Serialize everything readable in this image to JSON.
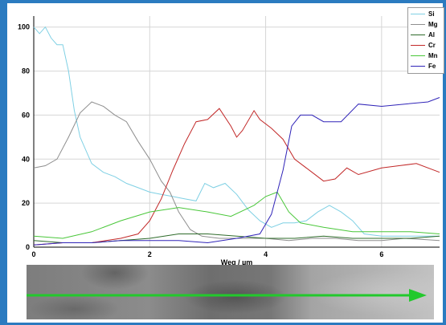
{
  "chart_data": {
    "type": "line",
    "title": "",
    "xlabel": "Weg / µm",
    "ylabel": "",
    "xlim": [
      0,
      7
    ],
    "ylim": [
      0,
      105
    ],
    "xticks": [
      0,
      2,
      4,
      6
    ],
    "yticks": [
      0,
      20,
      40,
      60,
      80,
      100
    ],
    "grid": true,
    "legend_position": "top-right",
    "series": [
      {
        "name": "Si",
        "color": "#7fd0e4",
        "x": [
          0,
          0.1,
          0.2,
          0.3,
          0.4,
          0.5,
          0.6,
          0.7,
          0.8,
          1.0,
          1.2,
          1.4,
          1.6,
          1.8,
          2.0,
          2.2,
          2.4,
          2.6,
          2.8,
          2.95,
          3.1,
          3.3,
          3.5,
          3.7,
          3.9,
          4.1,
          4.3,
          4.5,
          4.7,
          4.9,
          5.1,
          5.3,
          5.5,
          5.7,
          6.0,
          6.3,
          6.6,
          7.0
        ],
        "y": [
          100,
          97,
          100,
          95,
          92,
          92,
          80,
          62,
          50,
          38,
          34,
          32,
          29,
          27,
          25,
          24,
          23,
          22,
          21,
          29,
          27,
          29,
          24,
          17,
          12,
          9,
          11,
          11,
          12,
          16,
          19,
          16,
          12,
          6,
          5,
          5,
          5,
          5
        ]
      },
      {
        "name": "Mg",
        "color": "#8e8e8e",
        "x": [
          0,
          0.2,
          0.4,
          0.6,
          0.8,
          1.0,
          1.2,
          1.4,
          1.6,
          1.8,
          2.0,
          2.2,
          2.35,
          2.5,
          2.7,
          2.9,
          3.2,
          3.6,
          4.0,
          4.4,
          4.8,
          5.2,
          5.6,
          6.0,
          6.4,
          7.0
        ],
        "y": [
          36,
          37,
          40,
          50,
          61,
          66,
          64,
          60,
          57,
          48,
          40,
          30,
          25,
          16,
          8,
          5,
          4,
          4,
          4,
          3,
          4,
          4,
          3,
          3,
          4,
          3
        ]
      },
      {
        "name": "Al",
        "color": "#2e6b2a",
        "x": [
          0,
          0.5,
          1.0,
          1.5,
          2.0,
          2.5,
          3.0,
          3.5,
          4.0,
          4.5,
          5.0,
          5.5,
          6.0,
          6.5,
          7.0
        ],
        "y": [
          3,
          2,
          2,
          3,
          4,
          6,
          6,
          5,
          4,
          4,
          5,
          4,
          4,
          4,
          5
        ]
      },
      {
        "name": "Cr",
        "color": "#c22828",
        "x": [
          0,
          0.5,
          1.0,
          1.5,
          1.8,
          2.0,
          2.2,
          2.4,
          2.6,
          2.8,
          3.0,
          3.2,
          3.4,
          3.5,
          3.6,
          3.8,
          3.9,
          4.1,
          4.3,
          4.5,
          4.8,
          5.0,
          5.2,
          5.4,
          5.6,
          6.0,
          6.3,
          6.6,
          7.0
        ],
        "y": [
          1,
          2,
          2,
          4,
          6,
          12,
          22,
          35,
          47,
          57,
          58,
          63,
          55,
          50,
          53,
          62,
          58,
          54,
          49,
          40,
          34,
          30,
          31,
          36,
          33,
          36,
          37,
          38,
          34
        ]
      },
      {
        "name": "Mn",
        "color": "#49c739",
        "x": [
          0,
          0.5,
          1.0,
          1.5,
          2.0,
          2.5,
          3.0,
          3.4,
          3.8,
          4.0,
          4.2,
          4.4,
          4.6,
          5.0,
          5.5,
          6.0,
          6.5,
          7.0
        ],
        "y": [
          5,
          4,
          7,
          12,
          16,
          18,
          16,
          14,
          19,
          23,
          25,
          16,
          11,
          9,
          7,
          7,
          7,
          6
        ]
      },
      {
        "name": "Fe",
        "color": "#3024b8",
        "x": [
          0,
          0.5,
          1.0,
          1.5,
          2.0,
          2.5,
          3.0,
          3.5,
          3.9,
          4.1,
          4.3,
          4.45,
          4.6,
          4.8,
          5.0,
          5.3,
          5.6,
          6.0,
          6.4,
          6.8,
          7.0
        ],
        "y": [
          1,
          2,
          2,
          3,
          3,
          3,
          2,
          4,
          6,
          15,
          35,
          55,
          60,
          60,
          57,
          57,
          65,
          64,
          65,
          66,
          68
        ]
      }
    ]
  },
  "colors": {
    "frame": "#2b7bc0",
    "scan_line": "#22c92c"
  }
}
